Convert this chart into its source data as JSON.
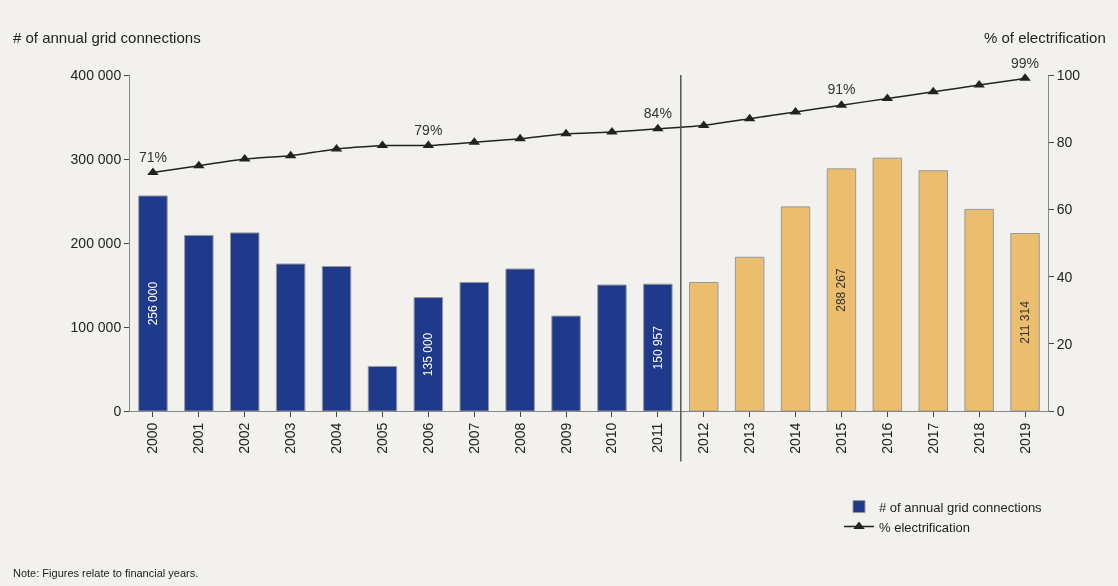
{
  "chart_data": {
    "type": "bar",
    "ylabel": "# of annual grid connections",
    "y2label": "% of electrification",
    "categories": [
      "2000",
      "2001",
      "2002",
      "2003",
      "2004",
      "2005",
      "2006",
      "2007",
      "2008",
      "2009",
      "2010",
      "2011",
      "2012",
      "2013",
      "2014",
      "2015",
      "2016",
      "2017",
      "2018",
      "2019"
    ],
    "series": [
      {
        "name": "# of annual grid connections",
        "color": "#1f3a8a",
        "colors": [
          "#1f3a8a",
          "#1f3a8a",
          "#1f3a8a",
          "#1f3a8a",
          "#1f3a8a",
          "#1f3a8a",
          "#1f3a8a",
          "#1f3a8a",
          "#1f3a8a",
          "#1f3a8a",
          "#1f3a8a",
          "#1f3a8a",
          "#ebbd6f",
          "#ebbd6f",
          "#ebbd6f",
          "#ebbd6f",
          "#ebbd6f",
          "#ebbd6f",
          "#ebbd6f",
          "#ebbd6f"
        ],
        "values": [
          256000,
          209000,
          212000,
          175000,
          172000,
          53000,
          135000,
          153000,
          169000,
          113000,
          150000,
          150957,
          153000,
          183000,
          243000,
          288267,
          301000,
          286000,
          240000,
          211314
        ],
        "value_labels": [
          "256 000",
          null,
          null,
          null,
          null,
          null,
          "135 000",
          null,
          null,
          null,
          null,
          "150 957",
          null,
          null,
          null,
          "288 267",
          null,
          null,
          null,
          "211 314"
        ]
      },
      {
        "name": "% electrification",
        "type": "line",
        "axis": "y2",
        "color": "#222222",
        "marker": "triangle",
        "values": [
          71,
          73,
          75,
          76,
          78,
          79,
          79,
          80,
          81,
          82.5,
          83,
          84,
          85,
          87,
          89,
          91,
          93,
          95,
          97,
          99
        ],
        "value_labels": [
          "71%",
          null,
          null,
          null,
          null,
          null,
          "79%",
          null,
          null,
          null,
          null,
          "84%",
          null,
          null,
          null,
          "91%",
          null,
          null,
          null,
          "99%"
        ]
      }
    ],
    "ylim": [
      0,
      400000
    ],
    "yticks": [
      0,
      {
        "value": 100000,
        "label": "100 000"
      },
      {
        "value": 200000,
        "label": "200 000"
      },
      {
        "value": 300000,
        "label": "300 000"
      },
      {
        "value": 400000,
        "label": "400 000"
      }
    ],
    "y2lim": [
      0,
      100
    ],
    "y2ticks": [
      0,
      20,
      40,
      60,
      80,
      100
    ],
    "grid": false,
    "legend": "bottom right",
    "annotations": [
      "Note: Figures relate to financial years."
    ]
  }
}
